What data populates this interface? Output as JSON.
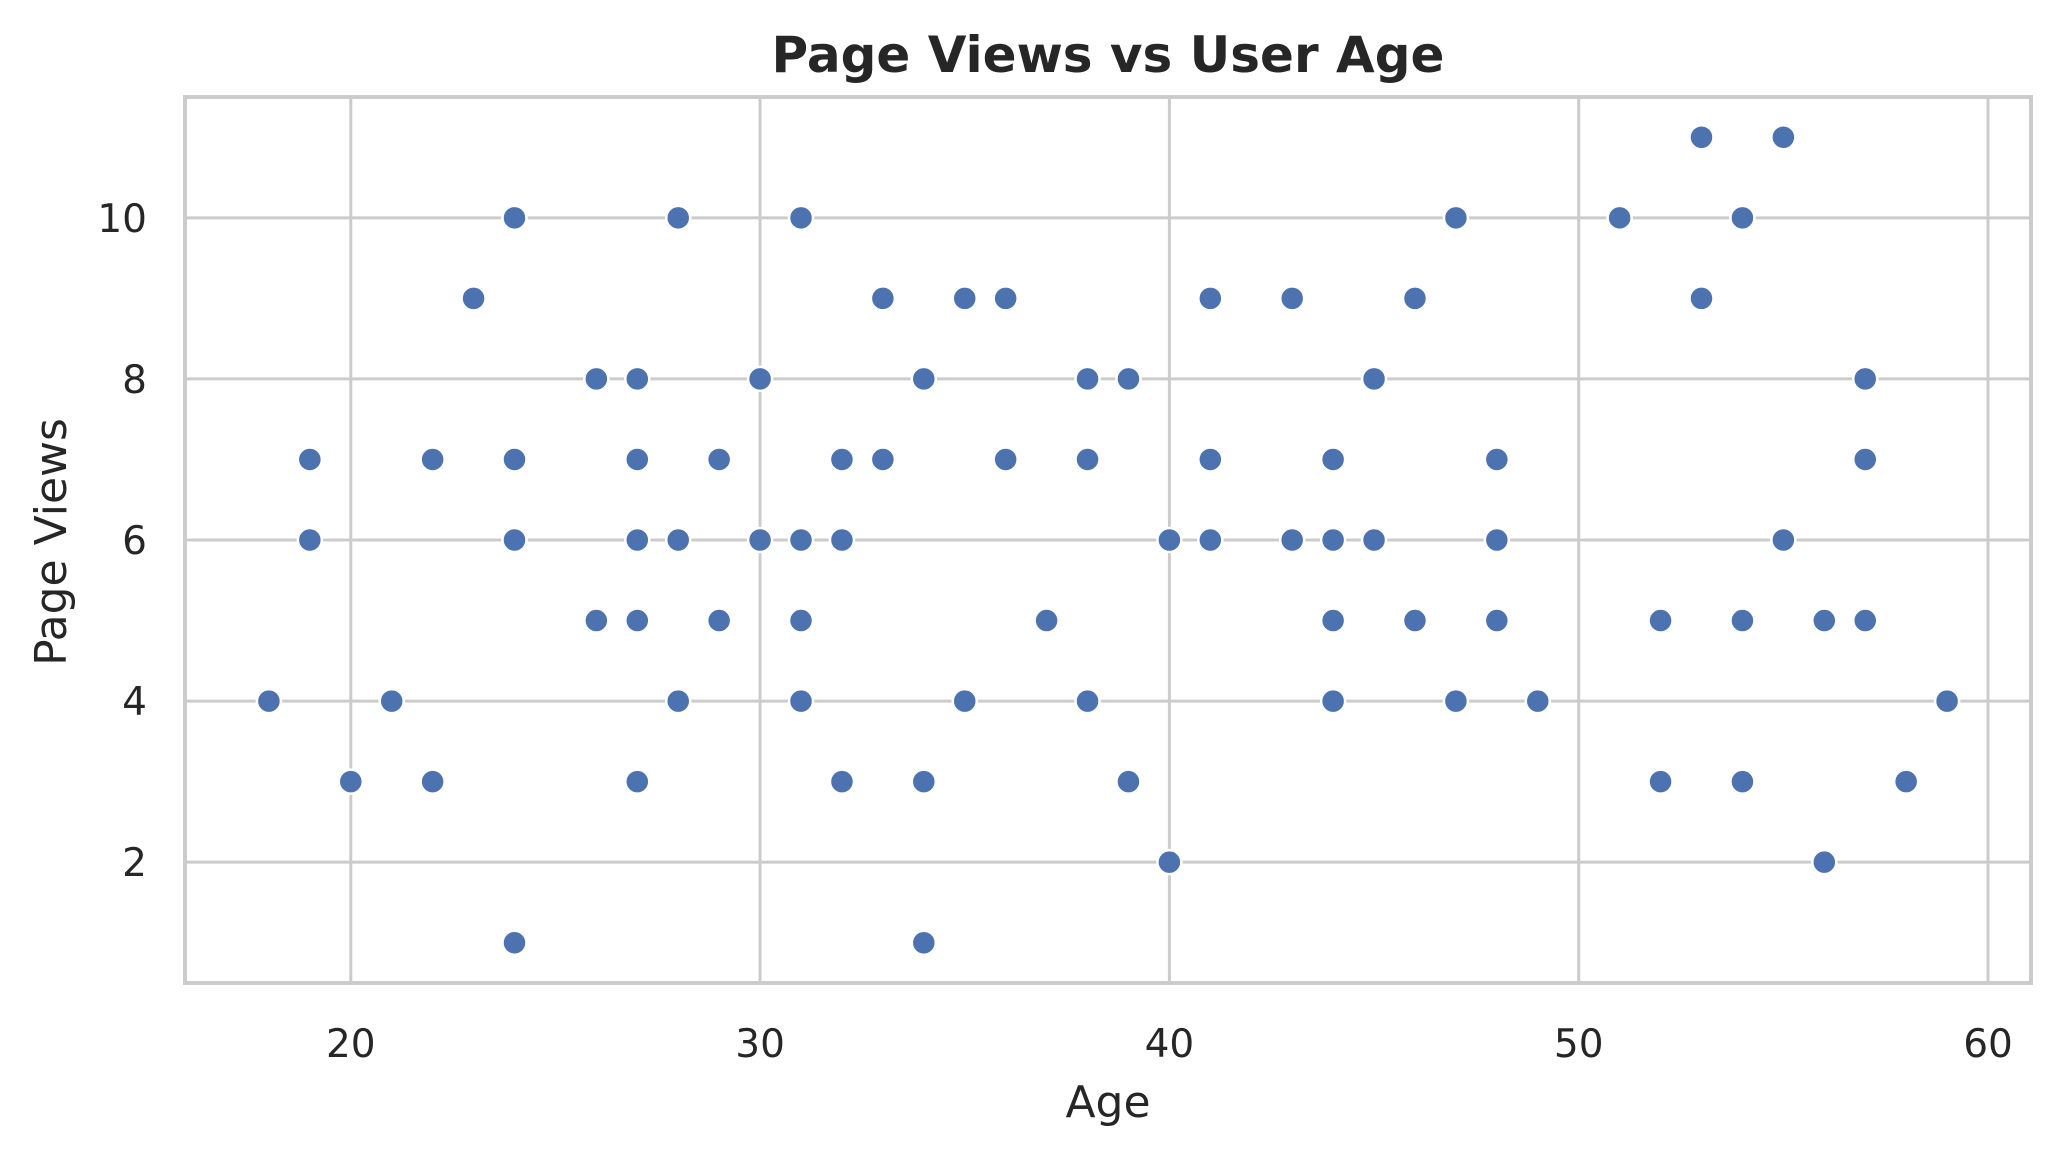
{
  "chart_data": {
    "type": "scatter",
    "title": "Page Views vs User Age",
    "xlabel": "Age",
    "ylabel": "Page Views",
    "xlim": [
      15.95,
      61.05
    ],
    "ylim": [
      0.5,
      11.5
    ],
    "xticks": [
      20,
      30,
      40,
      50,
      60
    ],
    "yticks": [
      2,
      4,
      6,
      8,
      10
    ],
    "grid": true,
    "legend": "none",
    "point_color": "#4c72b0",
    "points": [
      [
        18,
        4
      ],
      [
        19,
        7
      ],
      [
        19,
        6
      ],
      [
        20,
        3
      ],
      [
        21,
        4
      ],
      [
        22,
        7
      ],
      [
        22,
        3
      ],
      [
        23,
        9
      ],
      [
        24,
        10
      ],
      [
        24,
        7
      ],
      [
        24,
        6
      ],
      [
        24,
        1
      ],
      [
        26,
        8
      ],
      [
        26,
        5
      ],
      [
        27,
        8
      ],
      [
        27,
        7
      ],
      [
        27,
        6
      ],
      [
        27,
        5
      ],
      [
        27,
        3
      ],
      [
        28,
        10
      ],
      [
        28,
        6
      ],
      [
        28,
        4
      ],
      [
        29,
        7
      ],
      [
        29,
        5
      ],
      [
        30,
        8
      ],
      [
        30,
        6
      ],
      [
        31,
        10
      ],
      [
        31,
        6
      ],
      [
        31,
        5
      ],
      [
        31,
        4
      ],
      [
        32,
        7
      ],
      [
        32,
        6
      ],
      [
        32,
        3
      ],
      [
        33,
        9
      ],
      [
        33,
        7
      ],
      [
        34,
        8
      ],
      [
        34,
        3
      ],
      [
        34,
        1
      ],
      [
        35,
        9
      ],
      [
        35,
        4
      ],
      [
        36,
        9
      ],
      [
        36,
        7
      ],
      [
        37,
        5
      ],
      [
        38,
        8
      ],
      [
        38,
        7
      ],
      [
        38,
        4
      ],
      [
        39,
        8
      ],
      [
        39,
        3
      ],
      [
        40,
        6
      ],
      [
        40,
        2
      ],
      [
        41,
        9
      ],
      [
        41,
        7
      ],
      [
        41,
        6
      ],
      [
        43,
        9
      ],
      [
        43,
        6
      ],
      [
        44,
        7
      ],
      [
        44,
        6
      ],
      [
        44,
        5
      ],
      [
        44,
        4
      ],
      [
        45,
        8
      ],
      [
        45,
        6
      ],
      [
        46,
        9
      ],
      [
        46,
        5
      ],
      [
        47,
        10
      ],
      [
        47,
        4
      ],
      [
        48,
        7
      ],
      [
        48,
        6
      ],
      [
        48,
        5
      ],
      [
        49,
        4
      ],
      [
        51,
        10
      ],
      [
        52,
        5
      ],
      [
        52,
        3
      ],
      [
        53,
        11
      ],
      [
        53,
        9
      ],
      [
        54,
        10
      ],
      [
        54,
        5
      ],
      [
        54,
        3
      ],
      [
        55,
        11
      ],
      [
        55,
        6
      ],
      [
        56,
        5
      ],
      [
        56,
        2
      ],
      [
        57,
        8
      ],
      [
        57,
        7
      ],
      [
        57,
        5
      ],
      [
        58,
        3
      ],
      [
        59,
        4
      ]
    ]
  }
}
